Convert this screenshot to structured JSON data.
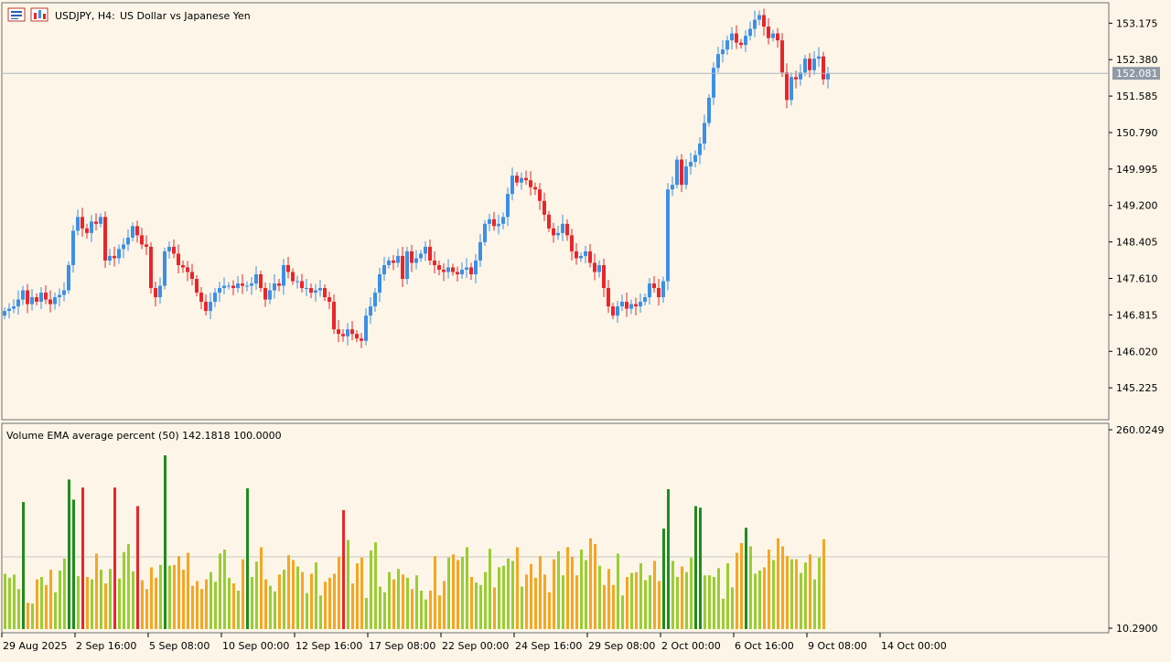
{
  "colors": {
    "background": "#fdf6e8",
    "frame": "#6e6e6e",
    "bull_candle": "#3d8fe6",
    "bear_candle": "#e8262a",
    "current_price_line": "#aab6c2",
    "price_tag_bg": "#8f9aa6",
    "volume_dark_green": "#1e8c1e",
    "volume_light_green": "#9acd32",
    "volume_orange": "#f5a623",
    "volume_red": "#e8262a",
    "volume_average_line": "#c8c8c8"
  },
  "header": {
    "symbol_timeframe": "USDJPY, H4:",
    "description": "US Dollar vs Japanese Yen",
    "icons": [
      "indicator-list-icon",
      "chart-properties-icon"
    ]
  },
  "price_panel": {
    "current_price": "152.081",
    "axis_labels": [
      "153.175",
      "152.380",
      "151.585",
      "150.790",
      "149.995",
      "149.200",
      "148.405",
      "147.610",
      "146.815",
      "146.020",
      "145.225"
    ],
    "y_range": [
      144.55,
      153.6
    ]
  },
  "indicator_panel": {
    "title": "Volume EMA average percent (50) 142.1818 100.0000",
    "axis_labels": [
      "260.0249",
      "10.2900"
    ],
    "y_range": [
      10.29,
      260.0249
    ],
    "average_level": 100
  },
  "time_axis": {
    "labels": [
      "29 Aug 2025",
      "2 Sep 16:00",
      "5 Sep 08:00",
      "10 Sep 00:00",
      "12 Sep 16:00",
      "17 Sep 08:00",
      "22 Sep 00:00",
      "24 Sep 16:00",
      "29 Sep 08:00",
      "2 Oct 00:00",
      "6 Oct 16:00",
      "9 Oct 08:00",
      "14 Oct 00:00"
    ]
  },
  "chart_data": {
    "type": "candlestick",
    "symbol": "USDJPY",
    "timeframe": "H4",
    "bar_spacing_note": "one value per 4-hour bar, left to right",
    "close": [
      146.9,
      146.95,
      147.0,
      147.15,
      147.35,
      147.05,
      147.2,
      147.1,
      147.3,
      147.15,
      147.05,
      147.2,
      147.25,
      147.35,
      147.9,
      148.65,
      148.95,
      148.7,
      148.6,
      148.85,
      148.8,
      148.95,
      148.0,
      148.1,
      148.05,
      148.25,
      148.35,
      148.5,
      148.75,
      148.55,
      148.35,
      148.3,
      147.4,
      147.2,
      147.45,
      148.2,
      148.3,
      148.15,
      147.9,
      147.85,
      147.75,
      147.6,
      147.3,
      147.1,
      146.9,
      147.1,
      147.3,
      147.4,
      147.45,
      147.45,
      147.4,
      147.5,
      147.45,
      147.45,
      147.5,
      147.7,
      147.4,
      147.15,
      147.35,
      147.5,
      147.45,
      147.9,
      147.75,
      147.55,
      147.55,
      147.4,
      147.4,
      147.3,
      147.35,
      147.4,
      147.2,
      147.1,
      146.5,
      146.4,
      146.35,
      146.5,
      146.4,
      146.3,
      146.25,
      146.8,
      147.0,
      147.3,
      147.7,
      147.9,
      148.0,
      147.95,
      148.1,
      147.6,
      148.2,
      147.95,
      148.05,
      148.15,
      148.3,
      148.0,
      147.9,
      147.8,
      147.75,
      147.85,
      147.75,
      147.7,
      147.8,
      147.85,
      147.7,
      148.0,
      148.4,
      148.8,
      148.9,
      148.75,
      148.8,
      148.95,
      149.45,
      149.85,
      149.7,
      149.8,
      149.75,
      149.6,
      149.55,
      149.3,
      149.0,
      148.7,
      148.55,
      148.6,
      148.8,
      148.55,
      148.2,
      148.05,
      148.1,
      148.2,
      147.95,
      147.75,
      147.9,
      147.4,
      147.0,
      146.8,
      147.0,
      147.1,
      146.95,
      147.05,
      147.0,
      147.1,
      147.2,
      147.5,
      147.4,
      147.2,
      147.55,
      149.55,
      149.65,
      150.2,
      149.65,
      150.05,
      150.15,
      150.3,
      150.55,
      151.0,
      151.55,
      152.2,
      152.5,
      152.6,
      152.8,
      152.95,
      152.75,
      152.7,
      152.9,
      153.05,
      153.25,
      153.35,
      153.1,
      152.85,
      152.95,
      152.8,
      152.1,
      151.5,
      152.0,
      151.95,
      152.1,
      152.4,
      152.15,
      152.4,
      152.45,
      151.95,
      152.08
    ]
  },
  "volume_data": {
    "type": "bar",
    "colors_by_category": [
      "dark_green",
      "light_green",
      "orange",
      "red"
    ],
    "values_percent": [
      79,
      74,
      78,
      60,
      168,
      43,
      42,
      72,
      75,
      65,
      84,
      56,
      83,
      98,
      196,
      171,
      76,
      186,
      75,
      72,
      104,
      84,
      67,
      85,
      186,
      73,
      106,
      116,
      82,
      163,
      71,
      60,
      87,
      74,
      90,
      226,
      89,
      90,
      101,
      84,
      105,
      64,
      70,
      60,
      72,
      81,
      69,
      104,
      109,
      74,
      67,
      58,
      97,
      185,
      75,
      94,
      112,
      72,
      64,
      57,
      78,
      84,
      102,
      96,
      88,
      81,
      55,
      79,
      93,
      52,
      69,
      74,
      79,
      100,
      158,
      121,
      67,
      92,
      99,
      49,
      108,
      118,
      63,
      56,
      81,
      72,
      85,
      78,
      74,
      60,
      77,
      58,
      47,
      58,
      101,
      52,
      70,
      99,
      103,
      96,
      100,
      112,
      75,
      68,
      65,
      81,
      110,
      62,
      87,
      89,
      98,
      95,
      112,
      63,
      78,
      91,
      74,
      101,
      78,
      56,
      97,
      107,
      77,
      112,
      100,
      77,
      109,
      96,
      123,
      116,
      89,
      65,
      85,
      65,
      104,
      52,
      75,
      80,
      81,
      92,
      71,
      77,
      95,
      70,
      135,
      184,
      95,
      75,
      88,
      81,
      99,
      163,
      161,
      77,
      77,
      75,
      86,
      48,
      92,
      62,
      105,
      117,
      136,
      113,
      79,
      83,
      87,
      109,
      96,
      123,
      113,
      101,
      97,
      97,
      80,
      93,
      103,
      72,
      99,
      122
    ]
  }
}
